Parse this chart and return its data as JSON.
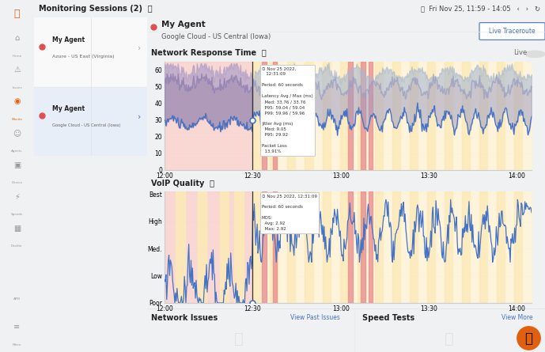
{
  "title": "Monitoring Sessions (2)",
  "agent1_name": "My Agent",
  "agent1_location": "Azure - US East (Virginia)",
  "agent2_name": "My Agent",
  "agent2_location": "Google Cloud - US Central (Iowa)",
  "date_range": "Fri Nov 25, 11:59 - 14:05",
  "net_section_title": "Network Response Time",
  "voip_section_title": "VoIP Quality",
  "net_issues_title": "Network Issues",
  "speed_tests_title": "Speed Tests",
  "view_past_issues": "View Past Issues",
  "view_more": "View More",
  "live_traceroute": "Live Traceroute",
  "live_label": "Live",
  "x_ticks": [
    "12:00",
    "12:30",
    "13:00",
    "13:30",
    "14:00"
  ],
  "y_ticks_net": [
    "0",
    "10",
    "20",
    "30",
    "40",
    "50",
    "60"
  ],
  "y_ticks_voip": [
    "Poor",
    "Low",
    "Med.",
    "High",
    "Best"
  ],
  "bg_color": "#f0f1f3",
  "panel_bg": "#ffffff",
  "sidebar_bg": "#f0f1f3",
  "pink_bg": "#f9d0cc",
  "yellow_bg": "#fce9b8",
  "red_stripe": "#f0a8a0",
  "purple_band": "#9080b8",
  "blue_band": "#a8b8d8",
  "net_line_color": "#4472c4",
  "voip_line_color": "#4472c4",
  "vline_color": "#222222",
  "tooltip_border": "#dddddd"
}
